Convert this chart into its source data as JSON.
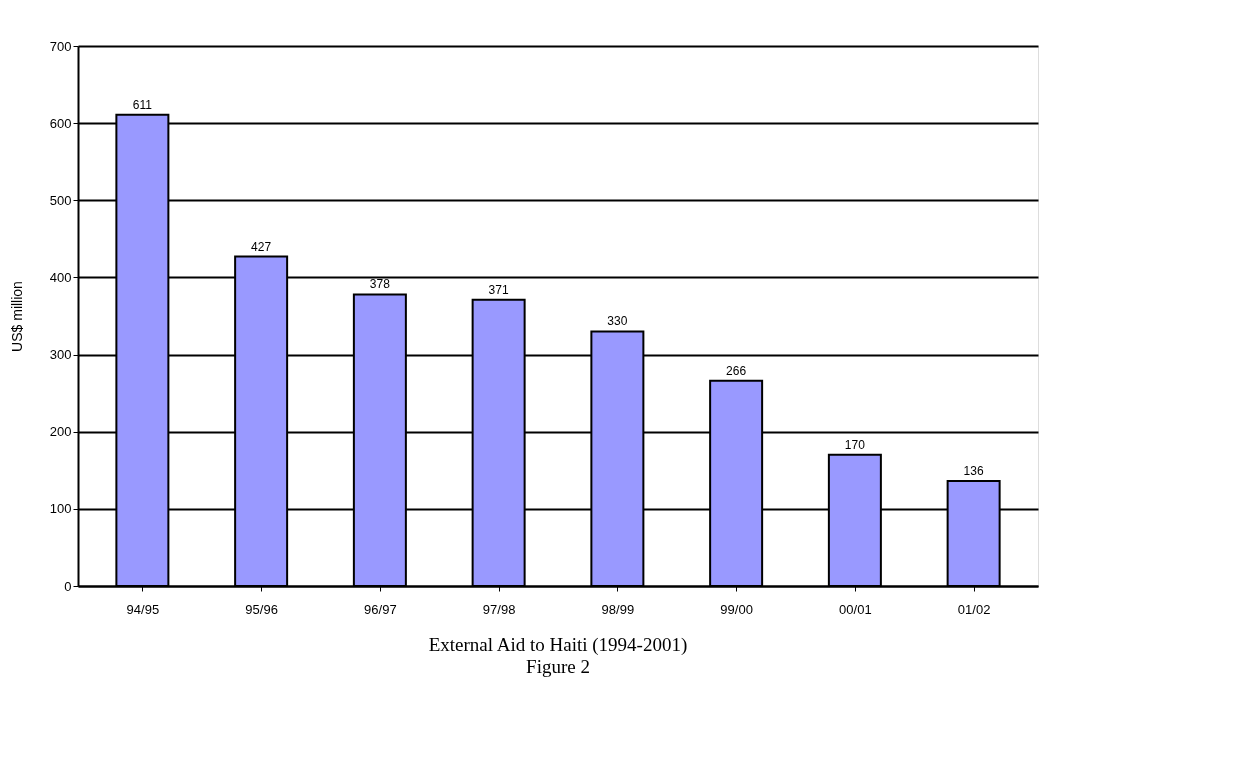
{
  "chart_data": {
    "type": "bar",
    "title": "External Aid to Haiti (1994-2001)",
    "subtitle": "Figure 2",
    "ylabel": "US$ million",
    "categories": [
      "94/95",
      "95/96",
      "96/97",
      "97/98",
      "98/99",
      "99/00",
      "00/01",
      "01/02"
    ],
    "values": [
      611,
      427,
      378,
      371,
      330,
      266,
      170,
      136
    ],
    "color": "#9999ff",
    "ylim": [
      0,
      700
    ],
    "yticks": [
      0,
      100,
      200,
      300,
      400,
      500,
      600,
      700
    ],
    "grid": "y",
    "data_labels": true
  }
}
